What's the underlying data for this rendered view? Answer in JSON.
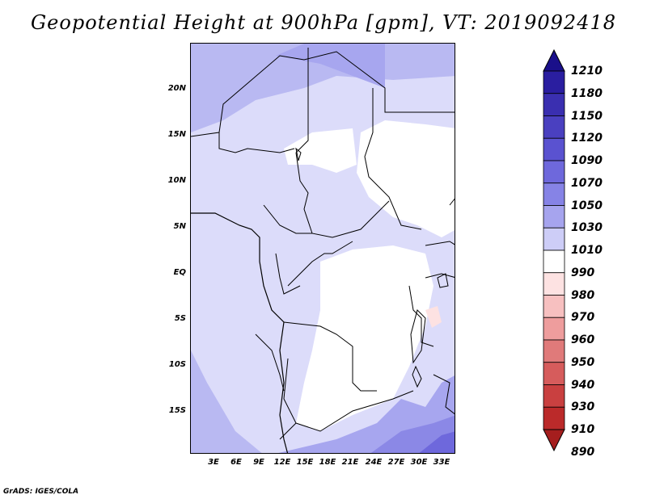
{
  "title": "Geopotential Height at 900hPa [gpm], VT: 2019092418",
  "footer": "GrADS: IGES/COLA",
  "map": {
    "variable": "Geopotential Height",
    "level": "900hPa",
    "units": "gpm",
    "valid_time": "2019092418",
    "lat_labels": [
      "20N",
      "15N",
      "10N",
      "5N",
      "EQ",
      "5S",
      "10S",
      "15S"
    ],
    "lon_labels": [
      "3E",
      "6E",
      "9E",
      "12E",
      "15E",
      "18E",
      "21E",
      "24E",
      "27E",
      "30E",
      "33E"
    ],
    "colorbar": {
      "labels": [
        "1210",
        "1180",
        "1150",
        "1120",
        "1090",
        "1070",
        "1050",
        "1030",
        "1010",
        "990",
        "980",
        "970",
        "960",
        "950",
        "940",
        "930",
        "910",
        "890"
      ],
      "colors": [
        "#1a0f8a",
        "#2a1ea0",
        "#3a2fb0",
        "#4a40c0",
        "#5a52d0",
        "#6e68dc",
        "#8683e6",
        "#a6a4ee",
        "#cdcdf7",
        "#ffffff",
        "#fde2e2",
        "#f7c0c0",
        "#ee9d9d",
        "#e07a7a",
        "#d65c5c",
        "#c94040",
        "#bb2a2a",
        "#a51e1e"
      ]
    }
  }
}
